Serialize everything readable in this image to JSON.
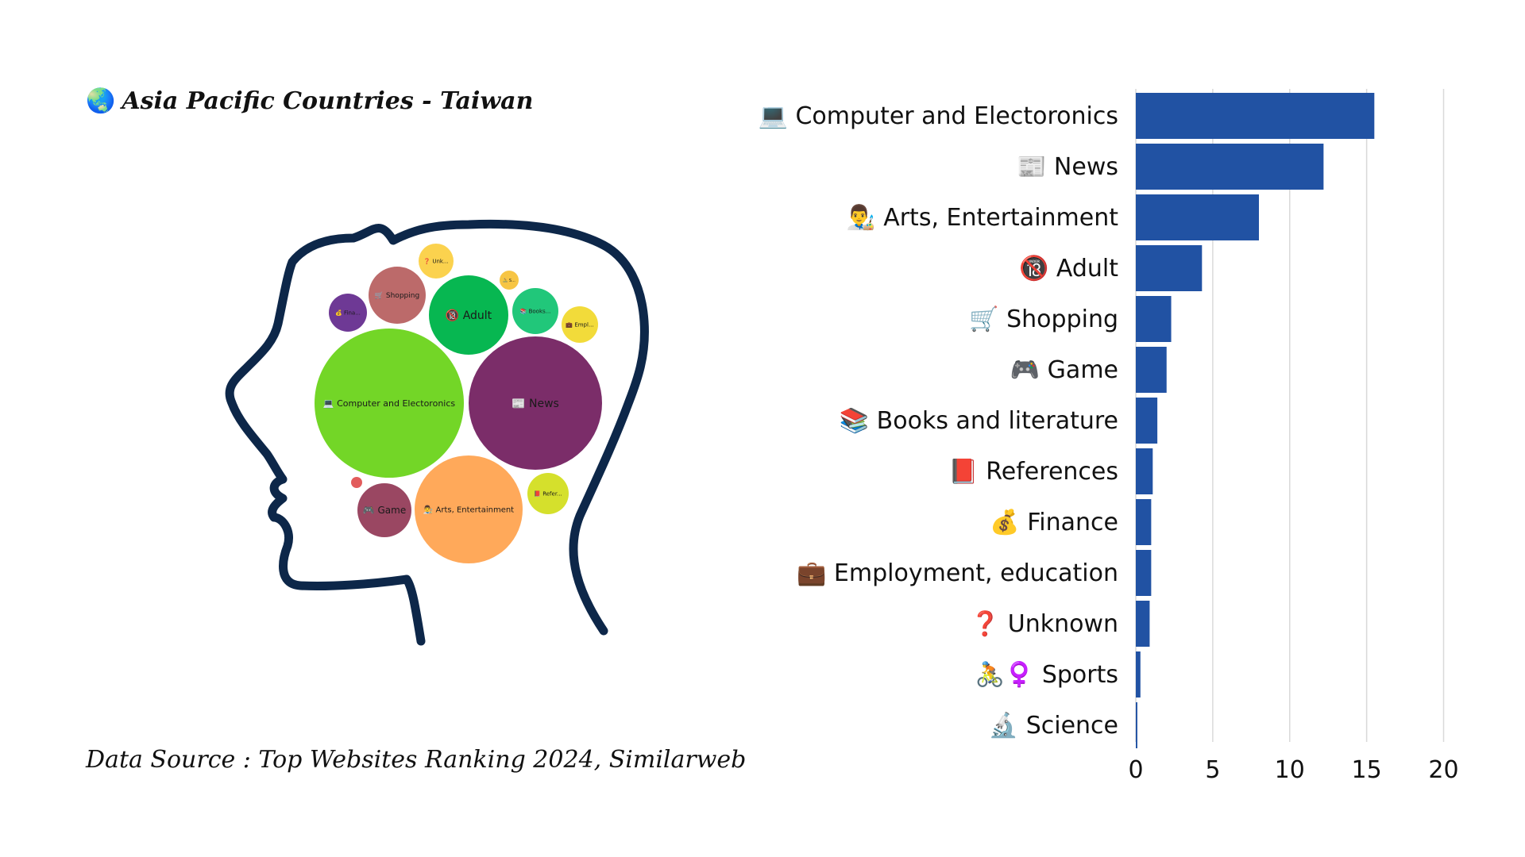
{
  "header": {
    "icon": "🌏",
    "title": "Asia Pacific Countries - Taiwan"
  },
  "footer": {
    "source": "Data Source : Top Websites Ranking 2024, Similarweb"
  },
  "colors": {
    "bar": "#2152a3",
    "head_outline": "#0d2749",
    "grid": "#d9d9d9"
  },
  "chart_data": [
    {
      "type": "bubble",
      "bubbles": [
        {
          "label": "💻 Computer and Electoronics",
          "color": "#73d627"
        },
        {
          "label": "📰 News",
          "color": "#7b2d69"
        },
        {
          "label": "👨‍🎨 Arts, Entertainment",
          "color": "#ffa95a"
        },
        {
          "label": "🔞 Adult",
          "color": "#07b751"
        },
        {
          "label": "🛒 Shopping",
          "color": "#bc6a6a"
        },
        {
          "label": "🎮 Game",
          "color": "#9a4762"
        },
        {
          "label": "📚 Books...",
          "color": "#21c77a"
        },
        {
          "label": "📕 Refer...",
          "color": "#d5e02c"
        },
        {
          "label": "💰 Fina...",
          "color": "#6e3995"
        },
        {
          "label": "💼 Empl...",
          "color": "#f2db3a"
        },
        {
          "label": "❓ Unk...",
          "color": "#fbd24e"
        },
        {
          "label": "🚴 S...",
          "color": "#f7c544"
        },
        {
          "label": "",
          "color": "#e25c5c"
        }
      ]
    },
    {
      "type": "bar",
      "orientation": "horizontal",
      "categories": [
        "💻 Computer and Electoronics",
        "📰 News",
        "👨‍🎨 Arts, Entertainment",
        "🔞 Adult",
        "🛒 Shopping",
        "🎮 Game",
        "📚 Books and literature",
        "📕 References",
        "💰 Finance",
        "💼 Employment, education",
        "❓ Unknown",
        "🚴♀️ Sports",
        "🔬 Science"
      ],
      "values": [
        15.5,
        12.2,
        8.0,
        4.3,
        2.3,
        2.0,
        1.4,
        1.1,
        1.0,
        1.0,
        0.9,
        0.3,
        0.1
      ],
      "xlim": [
        0,
        20
      ],
      "xticks": [
        0,
        5,
        10,
        15,
        20
      ],
      "grid": true
    }
  ]
}
